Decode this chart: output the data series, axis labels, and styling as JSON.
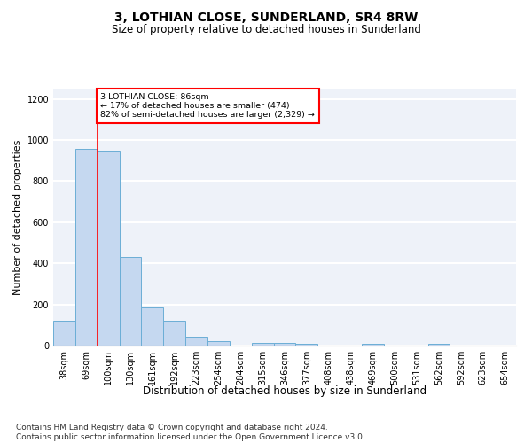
{
  "title": "3, LOTHIAN CLOSE, SUNDERLAND, SR4 8RW",
  "subtitle": "Size of property relative to detached houses in Sunderland",
  "xlabel": "Distribution of detached houses by size in Sunderland",
  "ylabel": "Number of detached properties",
  "footnote": "Contains HM Land Registry data © Crown copyright and database right 2024.\nContains public sector information licensed under the Open Government Licence v3.0.",
  "categories": [
    "38sqm",
    "69sqm",
    "100sqm",
    "130sqm",
    "161sqm",
    "192sqm",
    "223sqm",
    "254sqm",
    "284sqm",
    "315sqm",
    "346sqm",
    "377sqm",
    "408sqm",
    "438sqm",
    "469sqm",
    "500sqm",
    "531sqm",
    "562sqm",
    "592sqm",
    "623sqm",
    "654sqm"
  ],
  "bar_values": [
    120,
    955,
    950,
    430,
    185,
    120,
    45,
    22,
    0,
    15,
    15,
    10,
    0,
    0,
    8,
    0,
    0,
    8,
    0,
    0,
    0
  ],
  "bar_color": "#c5d8f0",
  "bar_edgecolor": "#6baed6",
  "annotation_box_text": "3 LOTHIAN CLOSE: 86sqm\n← 17% of detached houses are smaller (474)\n82% of semi-detached houses are larger (2,329) →",
  "annotation_box_color": "white",
  "annotation_box_edgecolor": "red",
  "vline_x_index": 1.5,
  "vline_color": "red",
  "ylim": [
    0,
    1250
  ],
  "yticks": [
    0,
    200,
    400,
    600,
    800,
    1000,
    1200
  ],
  "background_color": "#eef2f9",
  "grid_color": "white",
  "title_fontsize": 10,
  "subtitle_fontsize": 8.5,
  "axis_label_fontsize": 8,
  "tick_fontsize": 7,
  "footnote_fontsize": 6.5
}
